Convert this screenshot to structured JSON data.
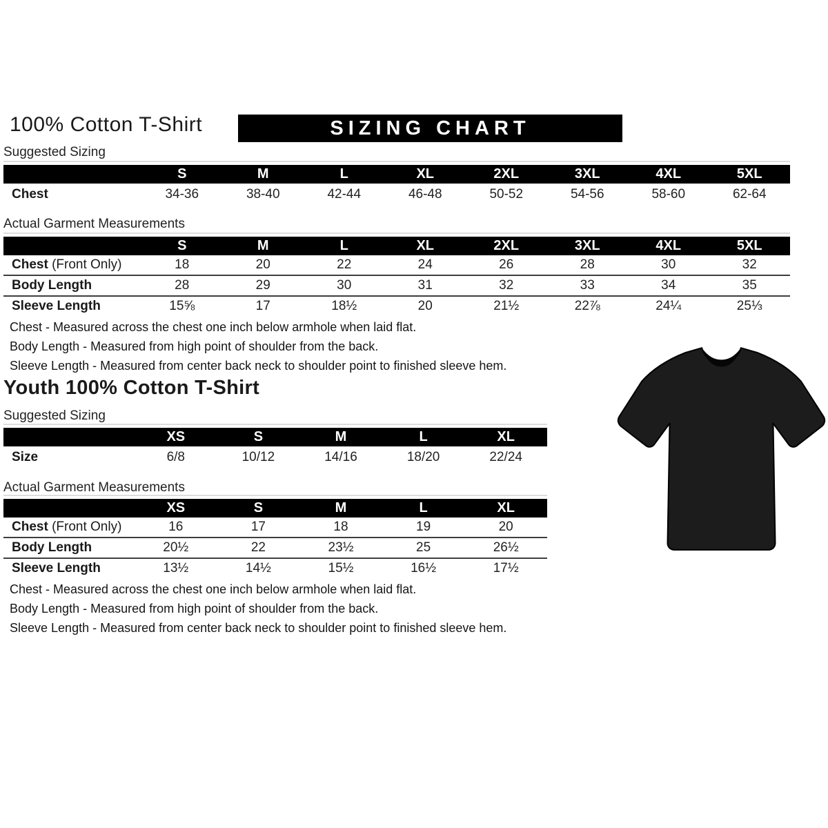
{
  "page": {
    "title": "100% Cotton T-Shirt",
    "banner": "SIZING CHART",
    "youth_title": "Youth 100% Cotton T-Shirt",
    "suggested_label": "Suggested Sizing",
    "actual_label": "Actual Garment Measurements"
  },
  "colors": {
    "header_bar": "#000000",
    "header_text": "#ffffff",
    "tshirt": "#1c1c1c"
  },
  "images": {
    "tshirt": "black-tshirt-front-graphic"
  },
  "notes": {
    "chest": "Chest - Measured across the chest one inch below armhole when laid flat.",
    "body": "Body Length - Measured from high point of shoulder from the back.",
    "sleeve": "Sleeve Length - Measured from center back neck to shoulder point to finished sleeve hem."
  },
  "tables": {
    "adult_suggested": {
      "headers": [
        "S",
        "M",
        "L",
        "XL",
        "2XL",
        "3XL",
        "4XL",
        "5XL"
      ],
      "rows": [
        {
          "label": "Chest",
          "suffix": "",
          "values": [
            "34-36",
            "38-40",
            "42-44",
            "46-48",
            "50-52",
            "54-56",
            "58-60",
            "62-64"
          ]
        }
      ]
    },
    "adult_actual": {
      "headers": [
        "S",
        "M",
        "L",
        "XL",
        "2XL",
        "3XL",
        "4XL",
        "5XL"
      ],
      "rows": [
        {
          "label": "Chest",
          "suffix": " (Front Only)",
          "values": [
            "18",
            "20",
            "22",
            "24",
            "26",
            "28",
            "30",
            "32"
          ]
        },
        {
          "label": "Body Length",
          "suffix": "",
          "values": [
            "28",
            "29",
            "30",
            "31",
            "32",
            "33",
            "34",
            "35"
          ]
        },
        {
          "label": "Sleeve Length",
          "suffix": "",
          "values": [
            "15⅝",
            "17",
            "18½",
            "20",
            "21½",
            "22⅞",
            "24¼",
            "25⅓"
          ]
        }
      ]
    },
    "youth_suggested": {
      "headers": [
        "XS",
        "S",
        "M",
        "L",
        "XL"
      ],
      "rows": [
        {
          "label": "Size",
          "suffix": "",
          "values": [
            "6/8",
            "10/12",
            "14/16",
            "18/20",
            "22/24"
          ]
        }
      ]
    },
    "youth_actual": {
      "headers": [
        "XS",
        "S",
        "M",
        "L",
        "XL"
      ],
      "rows": [
        {
          "label": "Chest",
          "suffix": " (Front Only)",
          "values": [
            "16",
            "17",
            "18",
            "19",
            "20"
          ]
        },
        {
          "label": "Body Length",
          "suffix": "",
          "values": [
            "20½",
            "22",
            "23½",
            "25",
            "26½"
          ]
        },
        {
          "label": "Sleeve Length",
          "suffix": "",
          "values": [
            "13½",
            "14½",
            "15½",
            "16½",
            "17½"
          ]
        }
      ]
    }
  }
}
